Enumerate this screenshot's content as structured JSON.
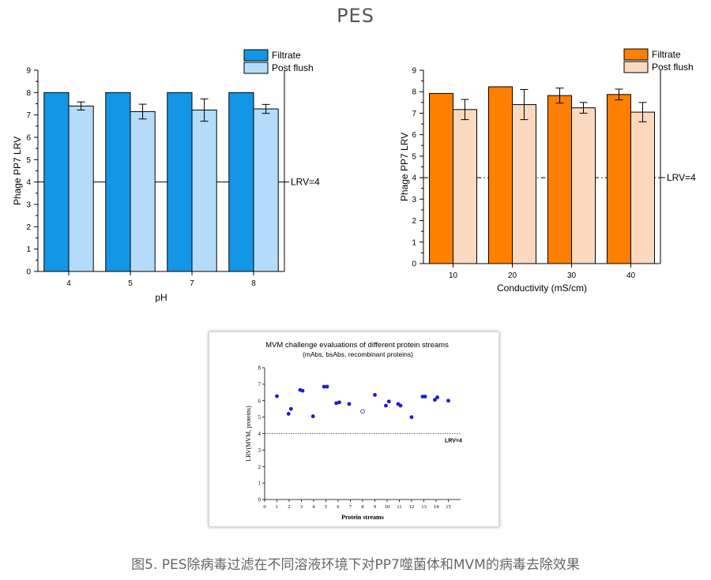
{
  "page_title": "PES",
  "caption": "图5. PES除病毒过滤在不同溶液环境下对PP7噬菌体和MVM的病毒去除效果",
  "colors": {
    "ph_filtrate": "#1496e6",
    "ph_post": "#b4dcfa",
    "cond_filtrate": "#ff7f00",
    "cond_post": "#fbd9bf",
    "mvm_point": "#1a1adc"
  },
  "chart_data": [
    {
      "type": "bar",
      "title": "",
      "xlabel": "pH",
      "ylabel": "Phage PP7 LRV",
      "ylim": [
        0,
        9
      ],
      "yticks": [
        "0",
        "1",
        "2",
        "3",
        "4",
        "5",
        "6",
        "7",
        "8",
        "9"
      ],
      "categories": [
        "4",
        "5",
        "7",
        "8"
      ],
      "series": [
        {
          "name": "Filtrate",
          "values": [
            8.0,
            8.0,
            8.0,
            8.0
          ],
          "errors": [
            0,
            0,
            0,
            0
          ]
        },
        {
          "name": "Post flush",
          "values": [
            7.4,
            7.15,
            7.22,
            7.27
          ],
          "errors": [
            0.18,
            0.33,
            0.5,
            0.2
          ]
        }
      ],
      "reference_line": {
        "value": 4,
        "label": "LRV=4",
        "style": "solid"
      },
      "legend_position": "top-right",
      "grid": false
    },
    {
      "type": "bar",
      "title": "",
      "xlabel": "Conductivity (mS/cm)",
      "ylabel": "Phage PP7 LRV",
      "ylim": [
        0,
        9
      ],
      "yticks": [
        "0",
        "1",
        "2",
        "3",
        "4",
        "5",
        "6",
        "7",
        "8",
        "9"
      ],
      "categories": [
        "10",
        "20",
        "30",
        "40"
      ],
      "series": [
        {
          "name": "Filtrate",
          "values": [
            7.92,
            8.23,
            7.82,
            7.87
          ],
          "errors": [
            0,
            0,
            0.35,
            0.25
          ]
        },
        {
          "name": "Post flush",
          "values": [
            7.17,
            7.4,
            7.25,
            7.05
          ],
          "errors": [
            0.47,
            0.7,
            0.25,
            0.45
          ]
        }
      ],
      "reference_line": {
        "value": 4,
        "label": "LRV=4",
        "style": "dash-dot"
      },
      "legend_position": "top-right",
      "grid": false
    },
    {
      "type": "scatter",
      "title": "MVM challenge evaluations of different protein streams",
      "subtitle": "(mAbs, bsAbs, recombinant proteins)",
      "xlabel": "Protein streams",
      "ylabel": "LRV(MVM, proteins)",
      "xlim": [
        0,
        16
      ],
      "ylim": [
        0,
        8
      ],
      "xticks": [
        "0",
        "1",
        "2",
        "3",
        "4",
        "5",
        "6",
        "7",
        "8",
        "9",
        "10",
        "11",
        "12",
        "13",
        "14",
        "15"
      ],
      "yticks": [
        "0",
        "1",
        "2",
        "3",
        "4",
        "5",
        "6",
        "7",
        "8"
      ],
      "points": [
        {
          "x": 1,
          "y": 6.27,
          "open": false
        },
        {
          "x": 1.95,
          "y": 5.2,
          "open": false
        },
        {
          "x": 2.15,
          "y": 5.5,
          "open": false
        },
        {
          "x": 2.9,
          "y": 6.65,
          "open": false
        },
        {
          "x": 3.1,
          "y": 6.6,
          "open": false
        },
        {
          "x": 3.95,
          "y": 5.05,
          "open": false
        },
        {
          "x": 4.85,
          "y": 6.85,
          "open": false
        },
        {
          "x": 5.1,
          "y": 6.85,
          "open": false
        },
        {
          "x": 5.85,
          "y": 5.85,
          "open": false
        },
        {
          "x": 6.1,
          "y": 5.9,
          "open": false
        },
        {
          "x": 6.9,
          "y": 5.8,
          "open": false
        },
        {
          "x": 8.0,
          "y": 5.35,
          "open": true
        },
        {
          "x": 9.0,
          "y": 6.35,
          "open": false
        },
        {
          "x": 9.9,
          "y": 5.7,
          "open": false
        },
        {
          "x": 10.15,
          "y": 5.95,
          "open": false
        },
        {
          "x": 10.9,
          "y": 5.8,
          "open": false
        },
        {
          "x": 11.1,
          "y": 5.7,
          "open": false
        },
        {
          "x": 12.0,
          "y": 5.0,
          "open": false
        },
        {
          "x": 12.9,
          "y": 6.25,
          "open": false
        },
        {
          "x": 13.1,
          "y": 6.25,
          "open": false
        },
        {
          "x": 13.9,
          "y": 6.05,
          "open": false
        },
        {
          "x": 14.1,
          "y": 6.2,
          "open": false
        },
        {
          "x": 15.0,
          "y": 6.0,
          "open": false
        }
      ],
      "reference_line": {
        "value": 4,
        "label": "LRV=4",
        "style": "dotted"
      },
      "grid": false
    }
  ]
}
